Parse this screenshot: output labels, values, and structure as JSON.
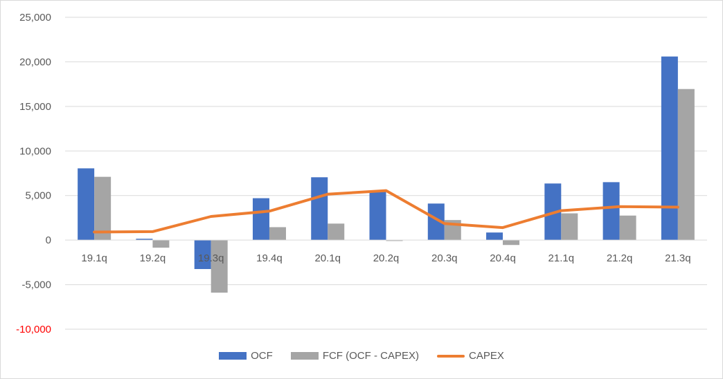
{
  "chart_data": {
    "type": "bar",
    "categories": [
      "19.1q",
      "19.2q",
      "19.3q",
      "19.4q",
      "20.1q",
      "20.2q",
      "20.3q",
      "20.4q",
      "21.1q",
      "21.2q",
      "21.3q"
    ],
    "series": [
      {
        "name": "OCF",
        "type": "bar",
        "color": "#4472c4",
        "values": [
          8050,
          150,
          -3250,
          4700,
          7050,
          5450,
          4100,
          850,
          6350,
          6500,
          20600
        ]
      },
      {
        "name": "FCF (OCF - CAPEX)",
        "type": "bar",
        "color": "#a5a5a5",
        "values": [
          7100,
          -850,
          -5900,
          1450,
          1850,
          -100,
          2250,
          -550,
          3000,
          2750,
          16950
        ]
      },
      {
        "name": "CAPEX",
        "type": "line",
        "color": "#ed7d31",
        "values": [
          900,
          950,
          2650,
          3250,
          5150,
          5550,
          1850,
          1400,
          3300,
          3750,
          3700
        ]
      }
    ],
    "ylim": [
      -10000,
      25000
    ],
    "yticks": [
      {
        "value": 25000,
        "label": "25,000",
        "color": "#595959"
      },
      {
        "value": 20000,
        "label": "20,000",
        "color": "#595959"
      },
      {
        "value": 15000,
        "label": "15,000",
        "color": "#595959"
      },
      {
        "value": 10000,
        "label": "10,000",
        "color": "#595959"
      },
      {
        "value": 5000,
        "label": "5,000",
        "color": "#595959"
      },
      {
        "value": 0,
        "label": "0",
        "color": "#595959"
      },
      {
        "value": -5000,
        "label": "-5,000",
        "color": "#595959"
      },
      {
        "value": -10000,
        "label": "-10,000",
        "color": "#ff0000"
      }
    ],
    "grid": true,
    "legend_position": "bottom"
  },
  "legend": {
    "ocf_label": "OCF",
    "fcf_label": "FCF (OCF - CAPEX)",
    "capex_label": "CAPEX"
  }
}
